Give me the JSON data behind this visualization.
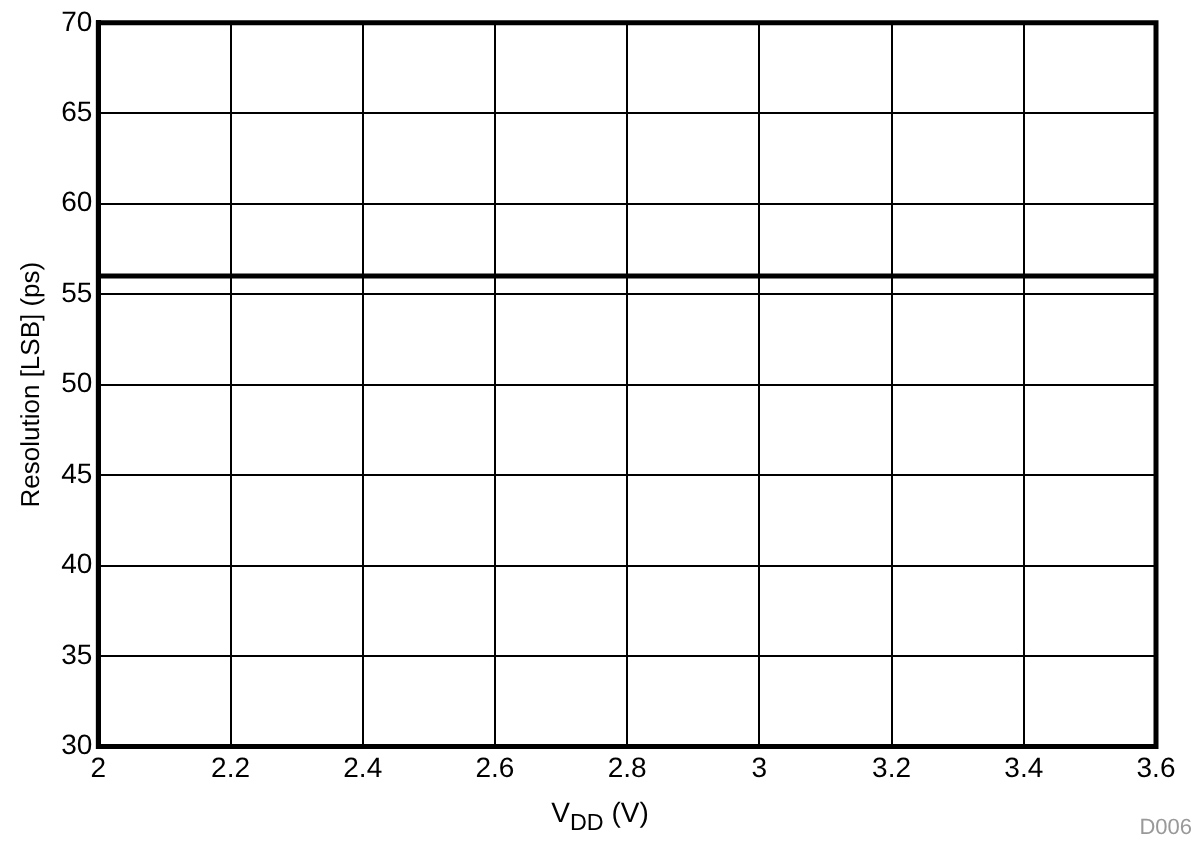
{
  "chart_data": {
    "type": "line",
    "xlabel": "V$_{DD}$ (V)",
    "ylabel": "Resolution [LSB] (ps)",
    "x": [
      2,
      3.6
    ],
    "series": [
      {
        "color": "#000000",
        "values": [
          56,
          56
        ]
      }
    ],
    "xlim": [
      2,
      3.6
    ],
    "xticks": [
      2,
      2.2,
      2.4,
      2.6,
      2.8,
      3,
      3.2,
      3.4,
      3.6
    ],
    "ylim": [
      30,
      70
    ],
    "yticks": [
      30,
      35,
      40,
      45,
      50,
      55,
      60,
      65,
      70
    ],
    "grid": true,
    "marker": "none",
    "line_style": "solid",
    "legend": false,
    "annotations": [
      "D006"
    ]
  }
}
